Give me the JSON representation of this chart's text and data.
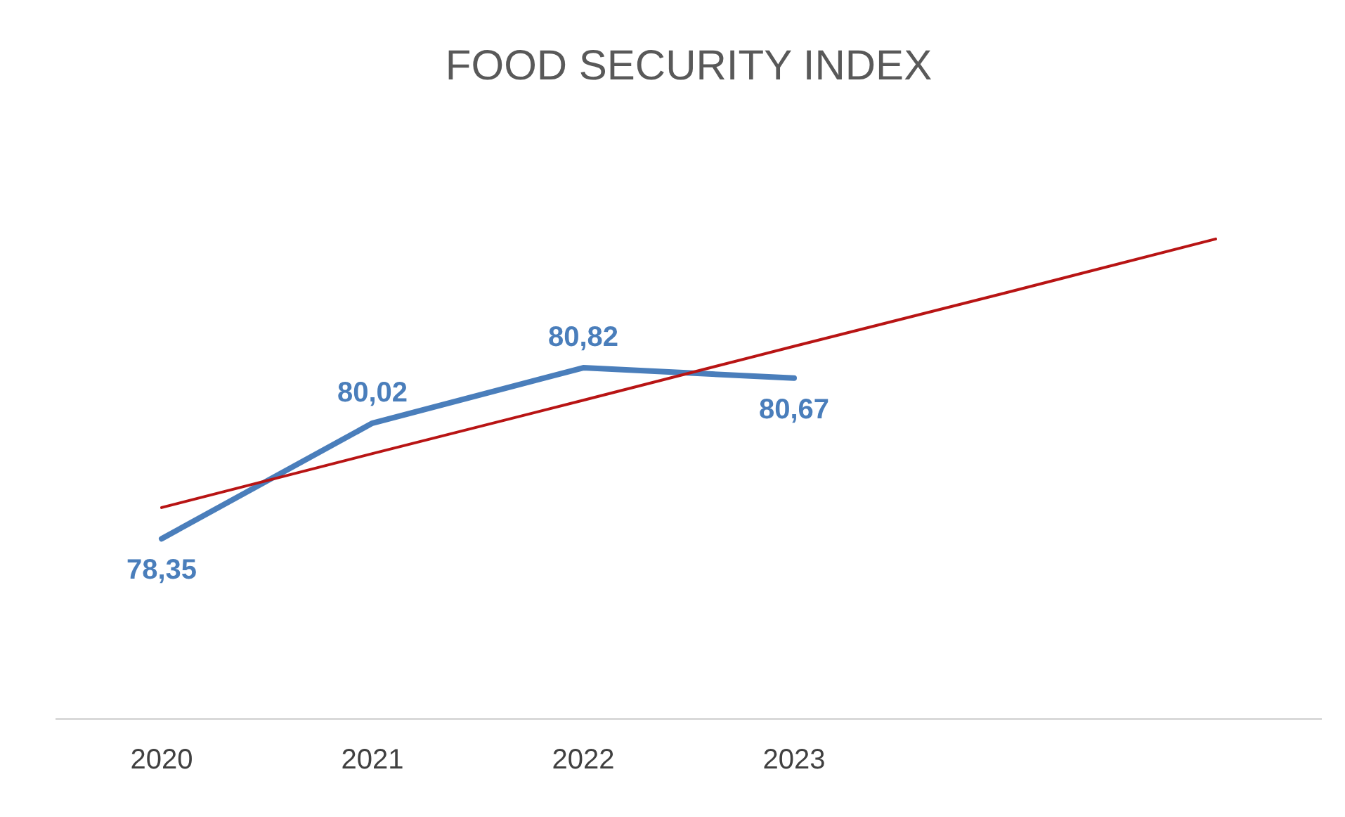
{
  "chart_data": {
    "type": "line",
    "title": "FOOD SECURITY INDEX",
    "categories": [
      "2020",
      "2021",
      "2022",
      "2023",
      null,
      null
    ],
    "marker": "none",
    "tick_labels": "x",
    "series": [
      {
        "color": "#4a7ebb",
        "values": [
          78.35,
          80.02,
          80.82,
          80.67,
          null,
          null
        ],
        "value_labels": [
          "78,35",
          "80,02",
          "80,82",
          "80,67",
          null,
          null
        ]
      },
      {
        "color": "#b81414",
        "values": [
          78.8,
          79.58,
          80.35,
          81.13,
          81.9,
          82.68
        ]
      }
    ]
  }
}
